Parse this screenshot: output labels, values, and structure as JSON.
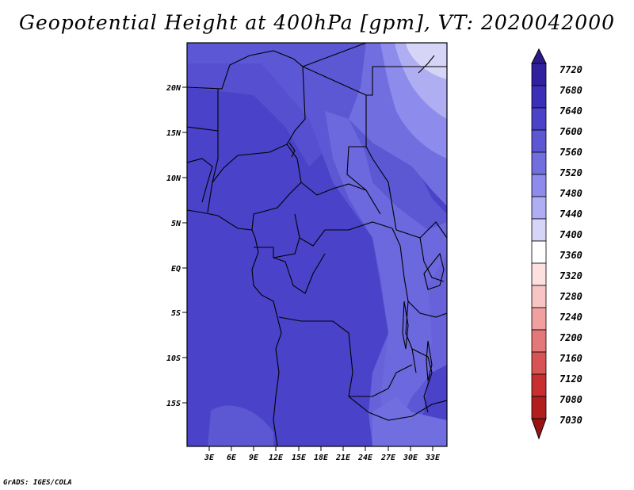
{
  "title": "Geopotential Height at 400hPa [gpm], VT: 2020042000",
  "credit": "GrADS: IGES/COLA",
  "map": {
    "y_axis_labels": [
      "20N",
      "15N",
      "10N",
      "5N",
      "EQ",
      "5S",
      "10S",
      "15S"
    ],
    "x_axis_labels": [
      "3E",
      "6E",
      "9E",
      "12E",
      "15E",
      "18E",
      "21E",
      "24E",
      "27E",
      "30E",
      "33E"
    ]
  },
  "colorbar": {
    "levels": [
      "7720",
      "7680",
      "7640",
      "7600",
      "7560",
      "7520",
      "7480",
      "7440",
      "7400",
      "7360",
      "7320",
      "7280",
      "7240",
      "7200",
      "7160",
      "7120",
      "7080",
      "7030"
    ],
    "colors": [
      "#2a1a8c",
      "#3020a0",
      "#3a2fb6",
      "#4a42c8",
      "#5c58d4",
      "#716ee0",
      "#8d8bec",
      "#b0aef2",
      "#d6d5f8",
      "#ffffff",
      "#fde0e0",
      "#f8c4c4",
      "#f0a0a0",
      "#e47878",
      "#d85454",
      "#c83030",
      "#b21e1e",
      "#9a1414"
    ]
  }
}
